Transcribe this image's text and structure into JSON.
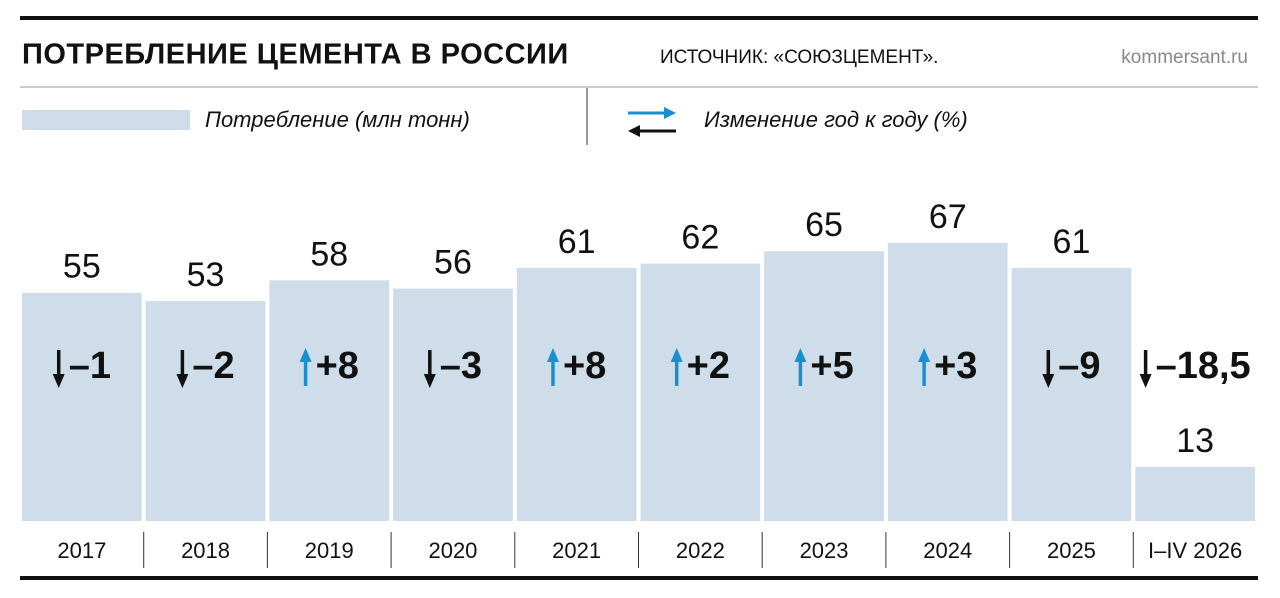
{
  "chart_data": {
    "type": "bar",
    "title": "ПОТРЕБЛЕНИЕ ЦЕМЕНТА В РОССИИ",
    "subtitle": "ИСТОЧНИК: «СОЮЗЦЕМЕНТ».",
    "site": "kommersant.ru",
    "categories": [
      "2017",
      "2018",
      "2019",
      "2020",
      "2021",
      "2022",
      "2023",
      "2024",
      "2025",
      "I–IV 2026"
    ],
    "series": [
      {
        "name": "Потребление (млн тонн)",
        "color": "#cfdcea",
        "values": [
          55,
          53,
          58,
          56,
          61,
          62,
          65,
          67,
          61,
          13
        ]
      }
    ],
    "change_name": "Изменение год к году (%)",
    "change_values": [
      -1,
      -2,
      8,
      -3,
      8,
      2,
      5,
      3,
      -9,
      -18.5
    ],
    "change_labels": [
      "–1",
      "–2",
      "+8",
      "–3",
      "+8",
      "+2",
      "+5",
      "+3",
      "–9",
      "–18,5"
    ],
    "up_color": "#1a8fd0",
    "down_color": "#111111"
  }
}
